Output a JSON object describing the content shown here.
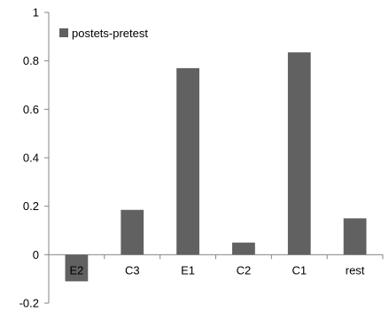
{
  "chart_data": {
    "type": "bar",
    "categories": [
      "E2",
      "C3",
      "E1",
      "C2",
      "C1",
      "rest"
    ],
    "series": [
      {
        "name": "postets-pretest",
        "values": [
          -0.11,
          0.185,
          0.77,
          0.05,
          0.835,
          0.15
        ],
        "color": "#616161"
      }
    ],
    "ylim": [
      -0.2,
      1
    ],
    "yticks": [
      -0.2,
      0,
      0.2,
      0.4,
      0.6,
      0.8,
      1
    ],
    "ytick_labels": [
      "-0.2",
      "0",
      "0.2",
      "0.4",
      "0.6",
      "0.8",
      "1"
    ],
    "grid": false,
    "legend_position": "top-left",
    "title": "",
    "xlabel": "",
    "ylabel": ""
  }
}
